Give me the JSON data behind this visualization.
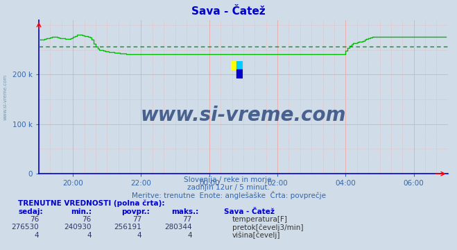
{
  "title": "Sava - Čatež",
  "title_color": "#0000cc",
  "bg_color": "#d0dce8",
  "plot_bg_color": "#d0dce8",
  "grid_color_minor": "#e8b0b0",
  "grid_color_major": "#cc8888",
  "axis_color": "#0000cc",
  "ylim": [
    0,
    310000
  ],
  "yticks": [
    0,
    100000,
    200000
  ],
  "ytick_labels": [
    "0",
    "100 k",
    "200 k"
  ],
  "xtick_labels": [
    "20:00",
    "22:00",
    "00:00",
    "02:00",
    "04:00",
    "06:00"
  ],
  "xtick_positions": [
    18,
    54,
    90,
    126,
    162,
    198
  ],
  "total_points": 216,
  "avg_flow": 256191,
  "line_color": "#00bb00",
  "avg_line_color": "#009900",
  "watermark": "www.si-vreme.com",
  "watermark_color": "#1a3870",
  "sub_text1": "Slovenija / reke in morje.",
  "sub_text2": "zadnjih 12ur / 5 minut.",
  "sub_text3": "Meritve: trenutne  Enote: anglešaške  Črta: povprečje",
  "table_header": "TRENUTNE VREDNOSTI (polna črta):",
  "col_headers": [
    "sedaj:",
    "min.:",
    "povpr.:",
    "maks.:",
    "Sava - Čatež"
  ],
  "row1": [
    "76",
    "76",
    "77",
    "77"
  ],
  "row2": [
    "276530",
    "240930",
    "256191",
    "280344"
  ],
  "row3": [
    "4",
    "4",
    "4",
    "4"
  ],
  "legend1": "temperatura[F]",
  "legend2": "pretok[čevelj3/min]",
  "legend3": "višina[čevelj]",
  "legend_color1": "#cc0000",
  "legend_color2": "#00cc00",
  "legend_color3": "#0000cc",
  "flow_data": [
    270000,
    270000,
    271000,
    272000,
    273000,
    274000,
    275000,
    276000,
    276000,
    275500,
    275000,
    274000,
    273000,
    273000,
    272000,
    272000,
    272000,
    273000,
    276000,
    278000,
    280000,
    280344,
    280000,
    279000,
    278000,
    277000,
    276000,
    275000,
    270000,
    262000,
    256000,
    252000,
    250000,
    249000,
    248000,
    247000,
    246500,
    246000,
    245500,
    245000,
    244500,
    244000,
    243500,
    243000,
    242500,
    242000,
    241500,
    241000,
    240930,
    241000,
    241000,
    241000,
    241000,
    241000,
    241000,
    241000,
    241000,
    241000,
    241000,
    241000,
    241000,
    241000,
    241000,
    241000,
    241000,
    241000,
    241000,
    241000,
    241000,
    241000,
    241000,
    241000,
    241000,
    241000,
    241000,
    241000,
    241000,
    241000,
    241000,
    241000,
    241000,
    241000,
    241000,
    241000,
    241000,
    241000,
    241000,
    241000,
    241000,
    241000,
    241000,
    241000,
    241000,
    241000,
    241000,
    241000,
    241000,
    241000,
    241000,
    241000,
    241000,
    241000,
    241000,
    241000,
    241000,
    241000,
    241000,
    241000,
    241000,
    241000,
    241000,
    241000,
    241000,
    241000,
    241000,
    241000,
    241000,
    241000,
    241000,
    241000,
    241000,
    241000,
    241000,
    241000,
    241000,
    241000,
    241000,
    241000,
    241000,
    241000,
    241000,
    241000,
    241000,
    241000,
    241000,
    241000,
    241000,
    241000,
    241000,
    241000,
    241000,
    241000,
    241000,
    241000,
    241000,
    241000,
    241000,
    241000,
    241000,
    241000,
    241000,
    241000,
    241000,
    241000,
    241000,
    241000,
    241000,
    241000,
    241000,
    241000,
    241000,
    241000,
    248000,
    254000,
    258000,
    261000,
    263000,
    264000,
    265000,
    266000,
    267000,
    268000,
    270000,
    272000,
    274000,
    275000,
    276000,
    276530,
    276530,
    276530,
    276530,
    276530,
    276530,
    276530,
    276530,
    276530,
    276530,
    276530,
    276530,
    276530,
    276530,
    276530,
    276530,
    276530,
    276530,
    276530,
    276530,
    276530,
    276530,
    276530,
    276530,
    276530,
    276530,
    276530,
    276530,
    276530,
    276530,
    276530,
    276530,
    276530,
    276530,
    276530,
    276530,
    276530,
    276530,
    276530
  ]
}
